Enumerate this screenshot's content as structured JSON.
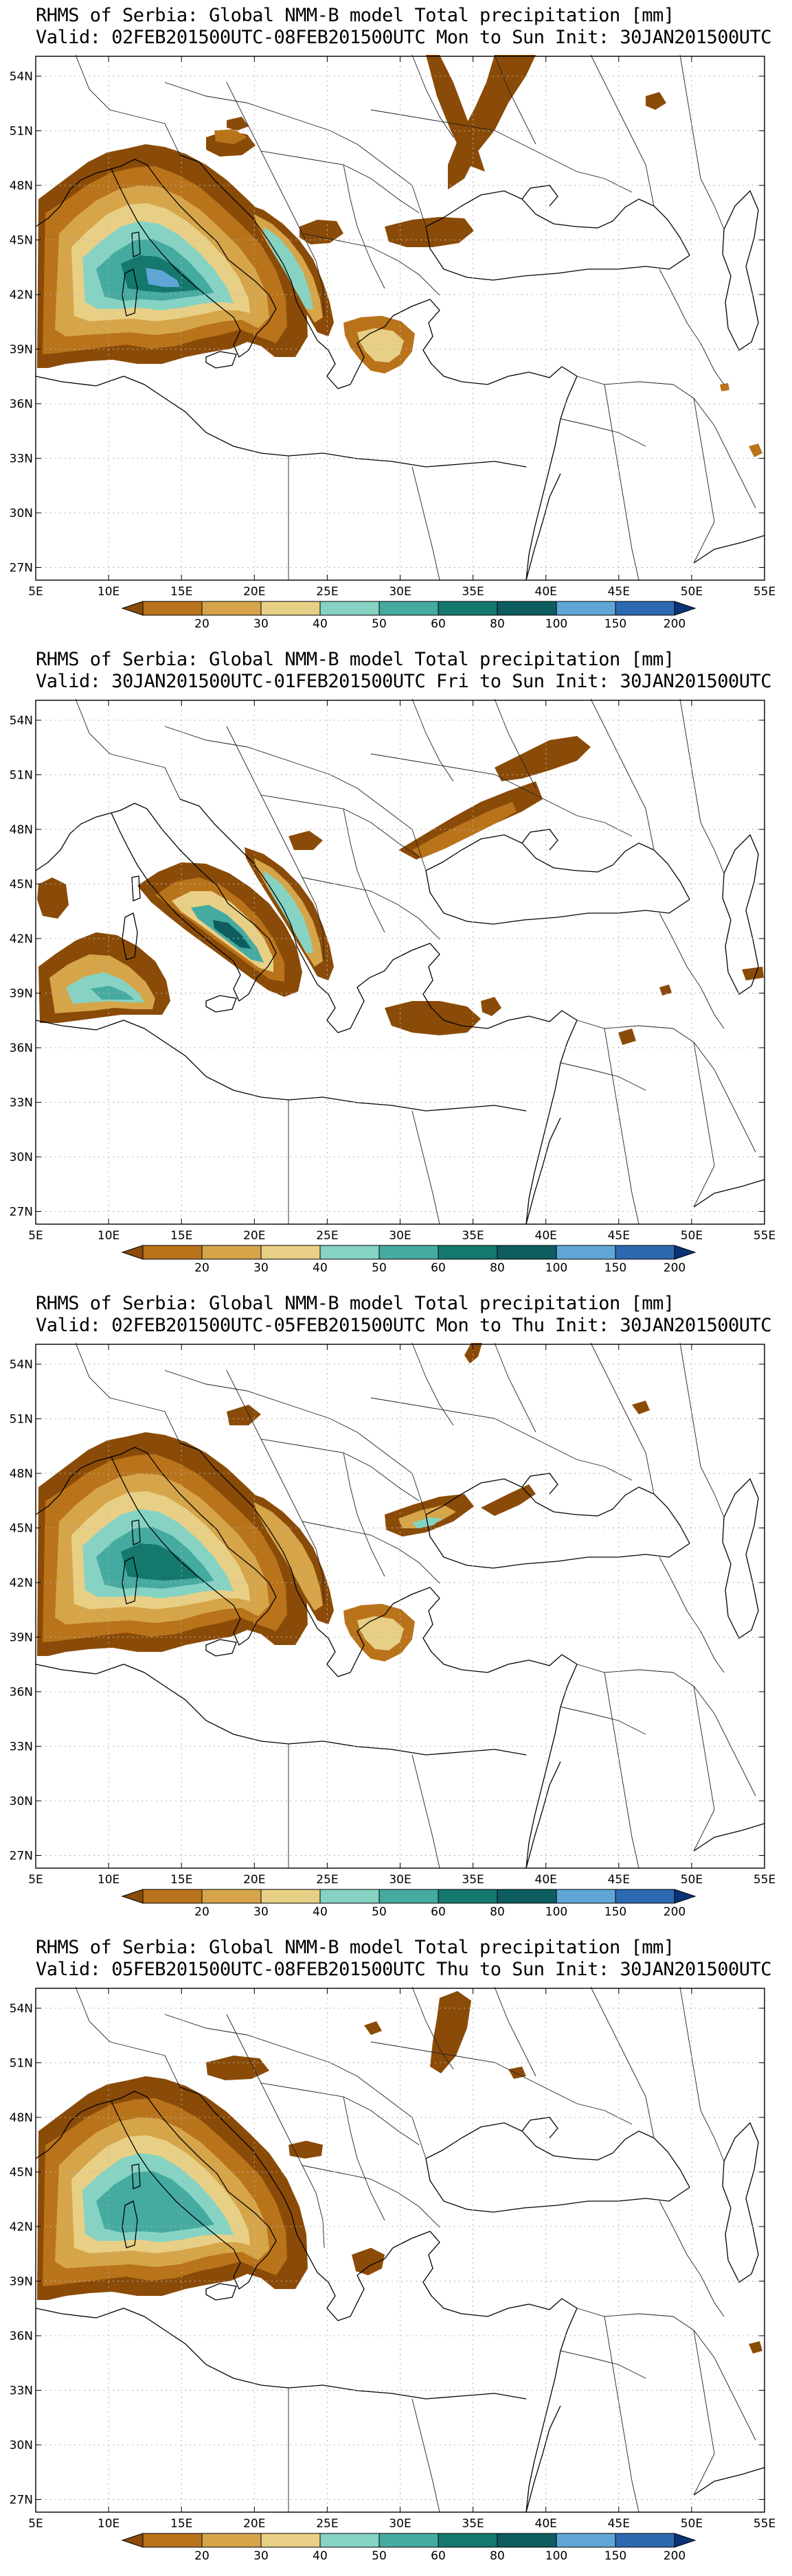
{
  "colors": {
    "bins": [
      "#8a4b08",
      "#b9731a",
      "#d6a54a",
      "#e8cf86",
      "#86d3c4",
      "#45aba0",
      "#14786c",
      "#0d5d60",
      "#5fa6d6",
      "#2d68b0",
      "#0c3279"
    ],
    "coast": "#000000",
    "grid": "#b4b4b4"
  },
  "axes": {
    "lon_ticks": [
      "5E",
      "10E",
      "15E",
      "20E",
      "25E",
      "30E",
      "35E",
      "40E",
      "45E",
      "50E",
      "55E"
    ],
    "lat_ticks": [
      "54N",
      "51N",
      "48N",
      "45N",
      "42N",
      "39N",
      "36N",
      "33N",
      "30N",
      "27N"
    ]
  },
  "legend": {
    "labels": [
      "20",
      "30",
      "40",
      "50",
      "60",
      "80",
      "100",
      "150",
      "200"
    ]
  },
  "panels": [
    {
      "title": "RHMS of Serbia: Global NMM-B model Total precipitation [mm]",
      "valid": "Valid: 02FEB201500UTC-08FEB201500UTC Mon to Sun",
      "init": "Init: 30JAN201500UTC"
    },
    {
      "title": "RHMS of Serbia: Global NMM-B model Total precipitation [mm]",
      "valid": "Valid: 30JAN201500UTC-01FEB201500UTC Fri to Sun",
      "init": "Init: 30JAN201500UTC"
    },
    {
      "title": "RHMS of Serbia: Global NMM-B model Total precipitation [mm]",
      "valid": "Valid: 02FEB201500UTC-05FEB201500UTC Mon to Thu",
      "init": "Init: 30JAN201500UTC"
    },
    {
      "title": "RHMS of Serbia: Global NMM-B model Total precipitation [mm]",
      "valid": "Valid: 05FEB201500UTC-08FEB201500UTC Thu to Sun",
      "init": "Init: 30JAN201500UTC"
    }
  ]
}
